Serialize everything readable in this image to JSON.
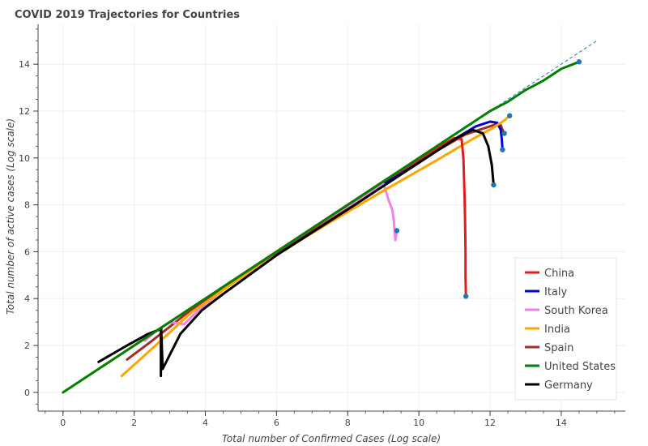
{
  "chart_data": {
    "type": "line",
    "title": "COVID 2019 Trajectories for Countries",
    "xlabel": "Total number of Confirmed Cases (Log scale)",
    "ylabel": "Total number of active cases (Log scale)",
    "xlim": [
      -0.7,
      15.8
    ],
    "ylim": [
      -0.8,
      15.7
    ],
    "xticks": [
      0,
      2,
      4,
      6,
      8,
      10,
      12,
      14
    ],
    "yticks": [
      0,
      2,
      4,
      6,
      8,
      10,
      12,
      14
    ],
    "grid": true,
    "legend_position": "bottom-right",
    "reference_line": {
      "style": "dashed",
      "color": "#1f77b4",
      "x": [
        0,
        15
      ],
      "y": [
        0,
        15
      ]
    },
    "series": [
      {
        "name": "China",
        "color": "#e41a1c",
        "x": [
          1.1,
          3,
          6,
          9,
          10.5,
          11.0,
          11.2,
          11.25,
          11.27,
          11.29,
          11.3,
          11.31,
          11.31,
          11.32
        ],
        "y": [
          1.1,
          3,
          6,
          9,
          10.4,
          10.85,
          10.8,
          10.0,
          9.0,
          8.0,
          7.0,
          6.0,
          5.0,
          4.1
        ]
      },
      {
        "name": "Italy",
        "color": "#0000cc",
        "x": [
          8.5,
          10,
          11,
          11.6,
          12.0,
          12.2,
          12.3,
          12.33,
          12.35
        ],
        "y": [
          8.4,
          9.8,
          10.8,
          11.35,
          11.55,
          11.5,
          11.2,
          10.8,
          10.35
        ]
      },
      {
        "name": "South Korea",
        "color": "#ee82ee",
        "x": [
          2.3,
          2.6,
          3.0,
          3.4,
          3.8,
          5,
          7,
          8.5,
          9.0,
          9.05,
          9.15,
          9.25,
          9.3,
          9.32,
          9.34,
          9.38
        ],
        "y": [
          2.2,
          2.6,
          3.0,
          2.9,
          3.5,
          5,
          7,
          8.4,
          8.9,
          8.7,
          8.2,
          7.8,
          7.3,
          6.8,
          6.5,
          6.9
        ]
      },
      {
        "name": "India",
        "color": "#ffa500",
        "x": [
          1.65,
          2.6,
          3.6,
          5,
          7,
          9,
          10.5,
          11.5,
          12.1,
          12.4,
          12.55
        ],
        "y": [
          0.7,
          2.0,
          3.4,
          4.9,
          6.8,
          8.6,
          9.9,
          10.8,
          11.3,
          11.6,
          11.8
        ]
      },
      {
        "name": "Spain",
        "color": "#a52a2a",
        "x": [
          1.8,
          2.5,
          3.5,
          5,
          7,
          9,
          10.5,
          11.3,
          11.9,
          12.2,
          12.3,
          12.35,
          12.4
        ],
        "y": [
          1.4,
          2.2,
          3.4,
          4.9,
          6.9,
          8.9,
          10.3,
          11.0,
          11.3,
          11.45,
          11.4,
          11.2,
          11.05
        ]
      },
      {
        "name": "United States",
        "color": "#008000",
        "x": [
          0,
          2,
          4,
          6,
          8,
          10,
          12,
          12.5,
          13,
          13.5,
          14,
          14.5
        ],
        "y": [
          0,
          2,
          4,
          6,
          8,
          10,
          12,
          12.4,
          12.9,
          13.3,
          13.8,
          14.1
        ]
      },
      {
        "name": "Germany",
        "color": "#000000",
        "x": [
          1.0,
          1.8,
          2.4,
          2.75,
          2.75,
          2.76,
          2.8,
          3.0,
          3.3,
          3.9,
          4.5,
          6,
          8,
          10,
          11.0,
          11.5,
          11.8,
          11.95,
          12.05,
          12.1
        ],
        "y": [
          1.3,
          2.0,
          2.5,
          2.7,
          0.7,
          2.75,
          1.0,
          1.6,
          2.5,
          3.5,
          4.2,
          5.85,
          7.8,
          9.8,
          10.8,
          11.2,
          11.05,
          10.5,
          9.7,
          8.85
        ]
      }
    ],
    "end_markers": [
      {
        "x": 11.32,
        "y": 4.1
      },
      {
        "x": 12.35,
        "y": 10.35
      },
      {
        "x": 9.38,
        "y": 6.9
      },
      {
        "x": 12.55,
        "y": 11.8
      },
      {
        "x": 12.4,
        "y": 11.05
      },
      {
        "x": 14.5,
        "y": 14.1
      },
      {
        "x": 12.1,
        "y": 8.85
      }
    ]
  }
}
